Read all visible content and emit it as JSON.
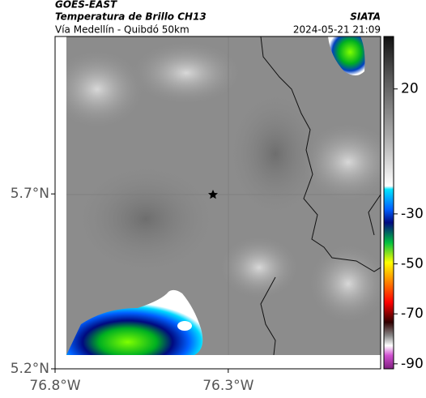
{
  "header": {
    "source": "GOES-EAST",
    "product": "Temperatura de Brillo CH13",
    "region": "Vía Medellín - Quibdó 50km",
    "organization": "SIATA",
    "timestamp": "2024-05-21 21:09"
  },
  "map": {
    "xlim": [
      -76.8,
      -75.86
    ],
    "ylim": [
      5.2,
      6.15
    ],
    "xticks": [
      {
        "value": -76.8,
        "label": "76.8°W"
      },
      {
        "value": -76.3,
        "label": "76.3°W"
      }
    ],
    "yticks": [
      {
        "value": 5.2,
        "label": "5.2°N"
      },
      {
        "value": 5.7,
        "label": "5.7°N"
      }
    ]
  },
  "colorbar": {
    "lim": [
      -92,
      41
    ],
    "ticks": [
      20,
      -30,
      -50,
      -70,
      -90
    ]
  }
}
